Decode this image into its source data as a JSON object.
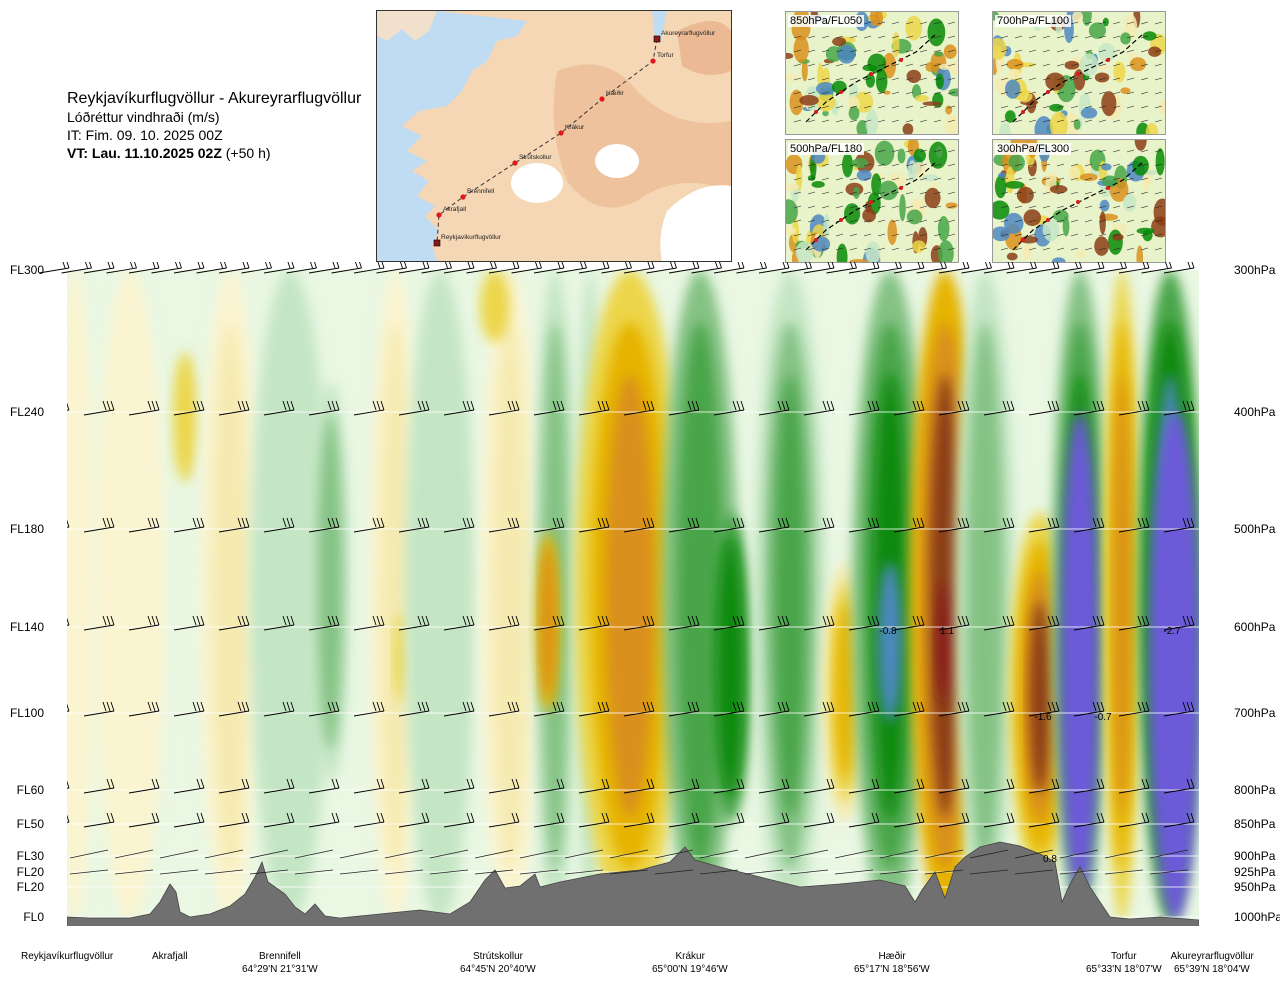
{
  "header": {
    "route": "Reykjavíkurflugvöllur - Akureyrarflugvöllur",
    "subtitle": "Lóðréttur vindhraði (m/s)",
    "issue_time": "IT: Fim. 09. 10. 2025 00Z",
    "valid_time_bold": "VT: Lau. 11.10.2025 02Z",
    "valid_time_offset": " (+50 h)"
  },
  "map": {
    "stations": [
      "Akureyrarflugvöllur",
      "Torfur",
      "Hæðir",
      "Krákur",
      "Strútskollur",
      "Brennifell",
      "Akrafjall",
      "Reykjavíkurflugvöllur"
    ],
    "land_color": "#f5d7b5",
    "sea_color": "#bfdcf2",
    "glacier_color": "#ffffff",
    "route_color": "#333333",
    "station_color": "#e0181c"
  },
  "thumbnails": [
    {
      "label": "850hPa/FL050"
    },
    {
      "label": "700hPa/FL100"
    },
    {
      "label": "500hPa/FL180"
    },
    {
      "label": "300hPa/FL300"
    }
  ],
  "levels": [
    {
      "fl": "FL300",
      "hpa": "300hPa"
    },
    {
      "fl": "FL240",
      "hpa": "400hPa"
    },
    {
      "fl": "FL180",
      "hpa": "500hPa"
    },
    {
      "fl": "FL140",
      "hpa": "600hPa"
    },
    {
      "fl": "FL100",
      "hpa": "700hPa"
    },
    {
      "fl": "FL60",
      "hpa": "800hPa"
    },
    {
      "fl": "FL50",
      "hpa": "850hPa"
    },
    {
      "fl": "FL30",
      "hpa": "900hPa"
    },
    {
      "fl": "FL20",
      "hpa": "925hPa"
    },
    {
      "fl": "FL20",
      "hpa": "950hPa"
    },
    {
      "fl": "FL0",
      "hpa": "1000hPa"
    }
  ],
  "locations": [
    {
      "name": "Reykjavíkurflugvöllur",
      "coord": ""
    },
    {
      "name": "Akrafjall",
      "coord": ""
    },
    {
      "name": "Brennifell",
      "coord": "64°29'N 21°31'W"
    },
    {
      "name": "Strútskollur",
      "coord": "64°45'N 20°40'W"
    },
    {
      "name": "Krákur",
      "coord": "65°00'N 19°46'W"
    },
    {
      "name": "Hæðir",
      "coord": "65°17'N 18°56'W"
    },
    {
      "name": "Torfur",
      "coord": "65°33'N 18°07'W"
    },
    {
      "name": "Akureyrarflugvöllur",
      "coord": "65°39'N 18°04'W"
    }
  ],
  "chart_data": {
    "type": "heatmap",
    "title": "Lóðréttur vindhraði (m/s)",
    "y_levels_hpa": [
      300,
      400,
      500,
      600,
      700,
      800,
      850,
      900,
      925,
      950,
      1000
    ],
    "y_levels_fl": [
      "FL300",
      "FL240",
      "FL180",
      "FL140",
      "FL100",
      "FL60",
      "FL50",
      "FL30",
      "FL20",
      "FL20",
      "FL0"
    ],
    "x_locations": [
      "Reykjavíkurflugvöllur",
      "Akrafjall",
      "Brennifell",
      "Strútskollur",
      "Krákur",
      "Hæðir",
      "Torfur",
      "Akureyrarflugvöllur"
    ],
    "contour_labels": [
      "-0.8",
      "1.1",
      "-1.6",
      "-0.7",
      "-2.7",
      "0.8"
    ],
    "palette": {
      "down_strong": "#6c5ad8",
      "down_4": "#4d88c2",
      "down_3": "#078a07",
      "down_2": "#48a548",
      "down_1": "#84c284",
      "down_05": "#c5e6c5",
      "neutral_low": "#e9f7e3",
      "neutral_high": "#fbf4d0",
      "up_05": "#f5eab0",
      "up_1": "#ecd64a",
      "up_2": "#e6b400",
      "up_3": "#d9901d",
      "up_4": "#8b3d16",
      "up_strong": "#8a1a1a"
    },
    "terrain_color": "#707070",
    "grid": true
  }
}
